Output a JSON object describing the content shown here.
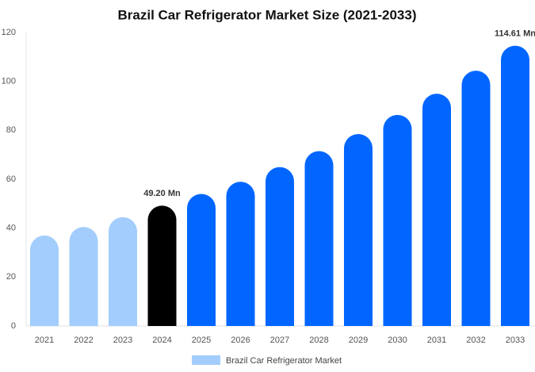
{
  "chart_data": {
    "type": "bar",
    "title": "Brazil Car Refrigerator Market Size (2021-2033)",
    "categories": [
      "2021",
      "2022",
      "2023",
      "2024",
      "2025",
      "2026",
      "2027",
      "2028",
      "2029",
      "2030",
      "2031",
      "2032",
      "2033"
    ],
    "series": [
      {
        "name": "Brazil Car Refrigerator Market",
        "color": "#a3cdfc",
        "values": [
          37,
          40.5,
          44.5,
          49.2,
          54,
          59,
          65,
          71.5,
          78.5,
          86.3,
          95,
          104.4,
          114.61
        ],
        "colors": [
          "#a3cdfc",
          "#a3cdfc",
          "#a3cdfc",
          "#000000",
          "#0066ff",
          "#0066ff",
          "#0066ff",
          "#0066ff",
          "#0066ff",
          "#0066ff",
          "#0066ff",
          "#0066ff",
          "#0066ff"
        ],
        "value_labels": [
          null,
          null,
          null,
          "49.20 Mn",
          null,
          null,
          null,
          null,
          null,
          null,
          null,
          null,
          "114.61 Mn"
        ]
      }
    ],
    "ylim": [
      0,
      120
    ],
    "yticks": [
      0,
      20,
      40,
      60,
      80,
      100,
      120
    ],
    "grid": false
  }
}
